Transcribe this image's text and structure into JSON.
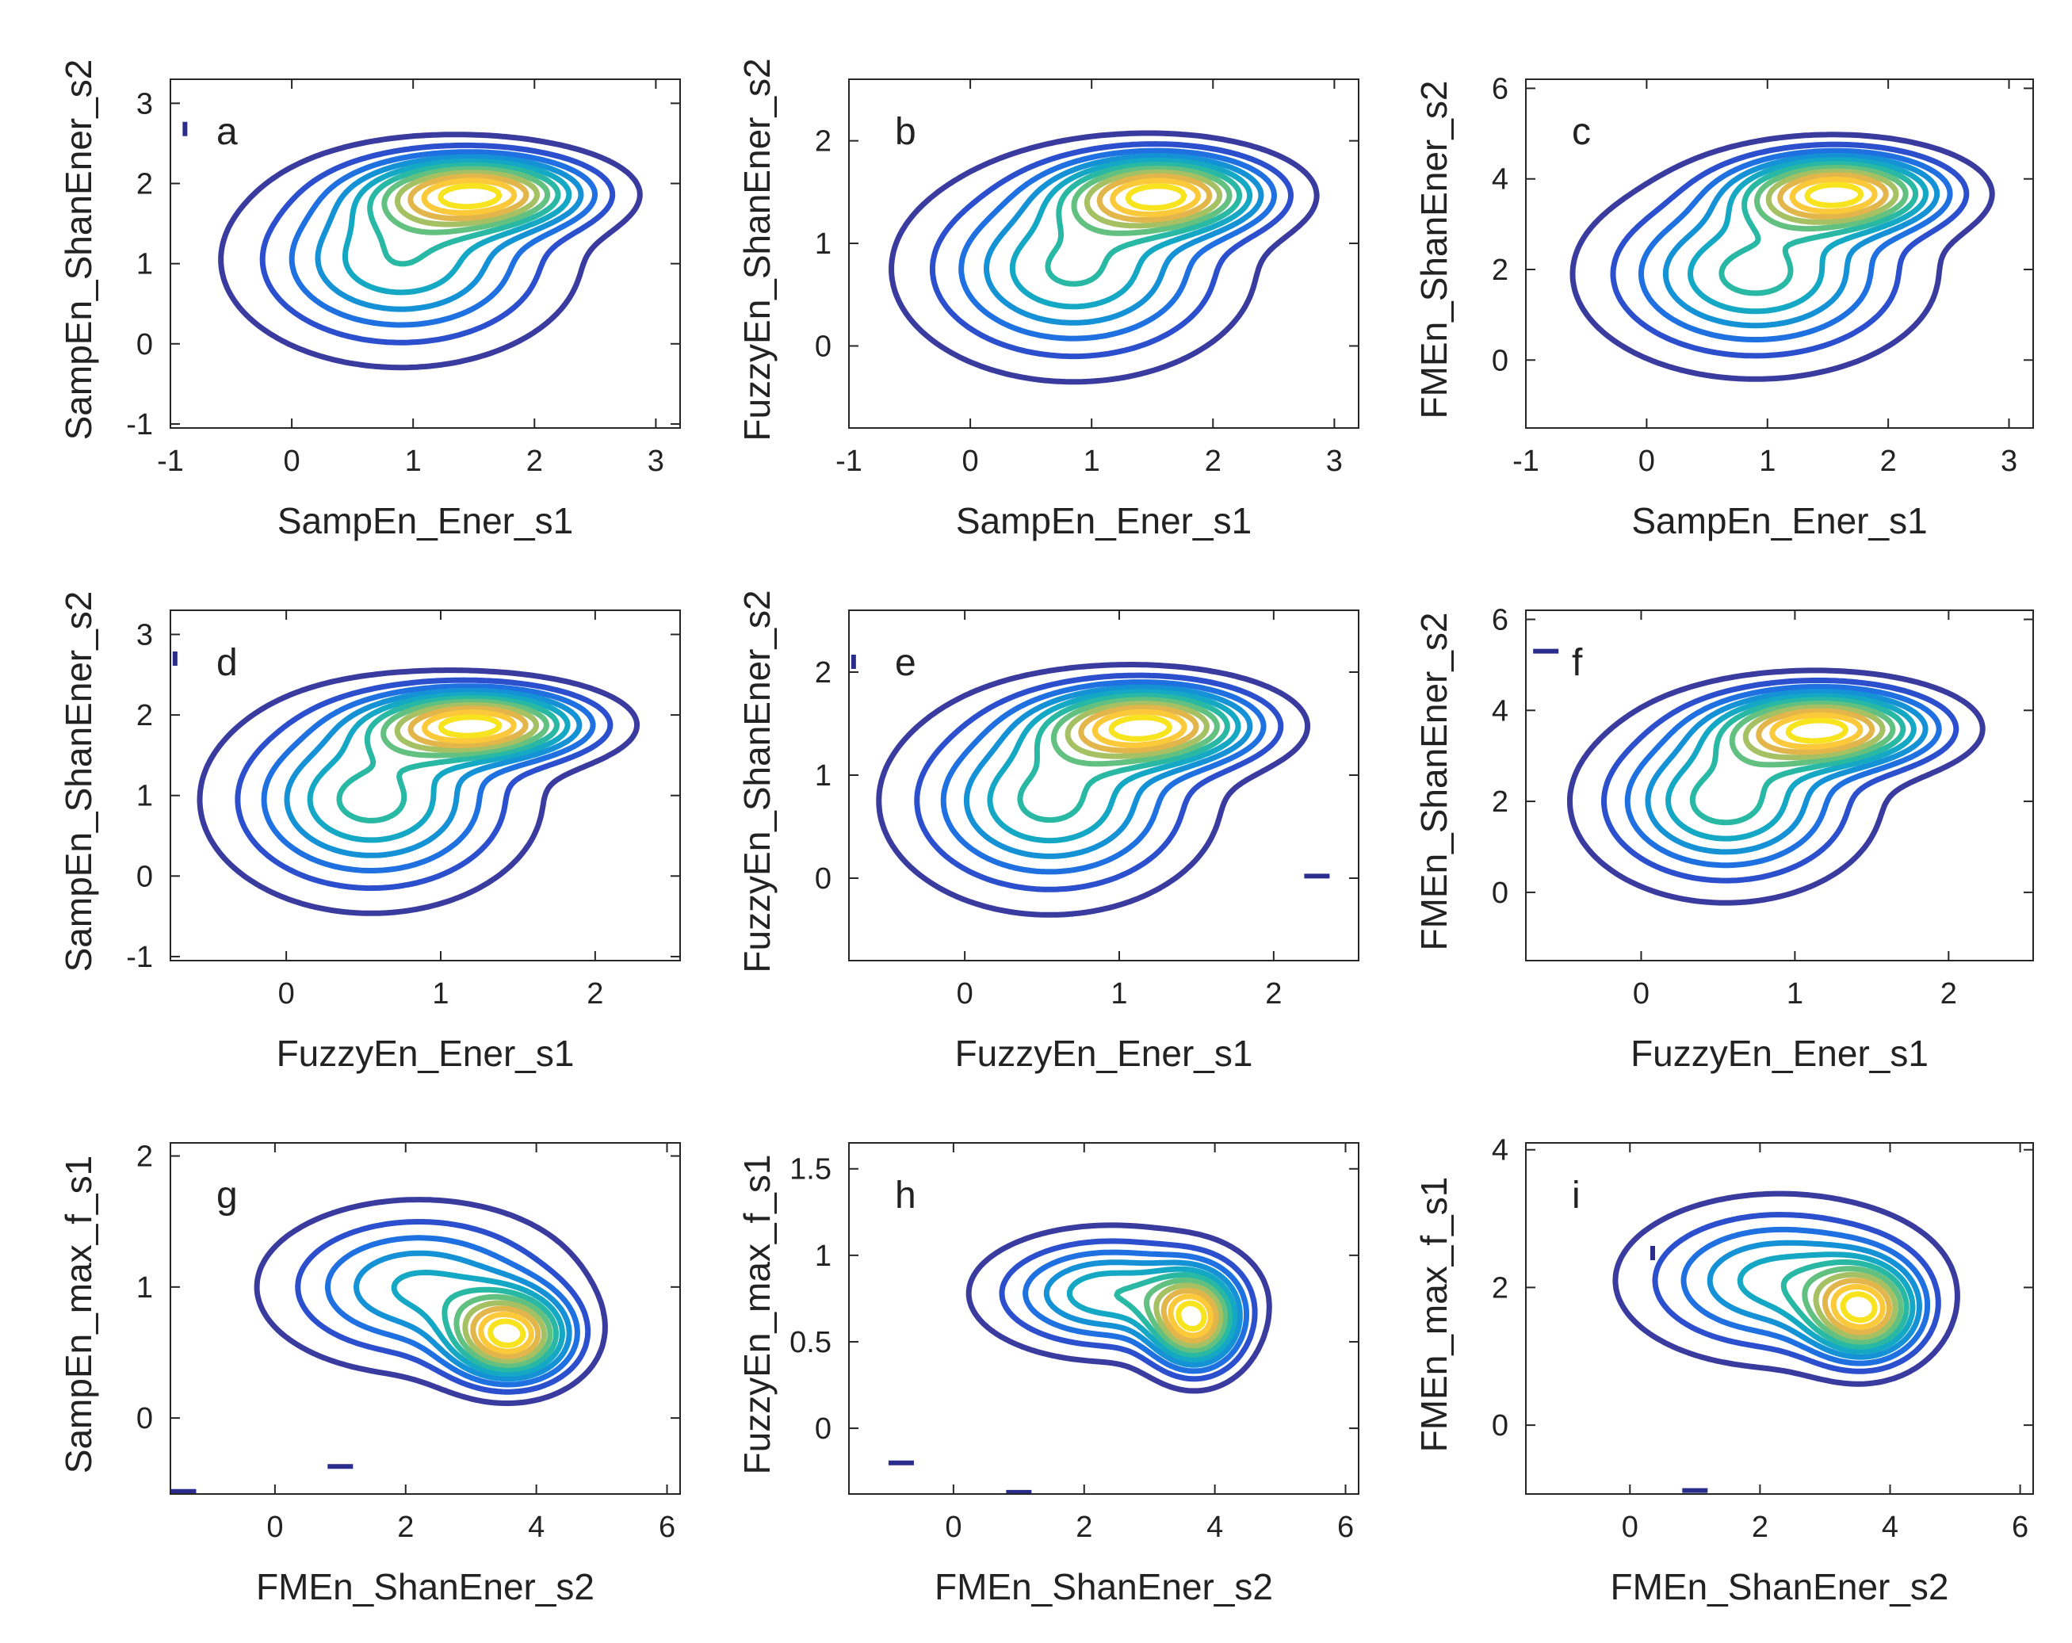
{
  "figure": {
    "background": "#ffffff"
  },
  "colors": {
    "axis": "#262626",
    "levels": [
      "#3a3b9f",
      "#2c4fcd",
      "#1f70e0",
      "#1592d6",
      "#15a8c4",
      "#28b8a4",
      "#62c080",
      "#a6c064",
      "#e2b64a",
      "#fbc93a",
      "#f8e31f"
    ]
  },
  "chart_data": [
    {
      "type": "contour",
      "panel": "a",
      "xlabel": "SampEn_Ener_s1",
      "ylabel": "SampEn_ShanEner_s2",
      "xlim": [
        -1,
        3.2
      ],
      "ylim": [
        -1.05,
        3.3
      ],
      "xticks": [
        -1,
        0,
        1,
        2,
        3
      ],
      "yticks": [
        -1,
        0,
        1,
        2,
        3
      ],
      "tick_labels_x": [
        "-1",
        "0",
        "1",
        "2",
        "3"
      ],
      "tick_labels_y": [
        "-1",
        "0",
        "1",
        "2",
        "3"
      ],
      "levels": 11,
      "components": [
        {
          "cx": 0.9,
          "cy": 1.05,
          "sx": 0.75,
          "sy": 0.68,
          "w": 0.6
        },
        {
          "cx": 1.55,
          "cy": 1.88,
          "sx": 0.58,
          "sy": 0.3,
          "w": 1.0
        }
      ],
      "markers": [
        {
          "x": -0.88,
          "y": 2.68,
          "orient": "v"
        }
      ]
    },
    {
      "type": "contour",
      "panel": "b",
      "xlabel": "SampEn_Ener_s1",
      "ylabel": "FuzzyEn_ShanEner_s2",
      "xlim": [
        -1,
        3.2
      ],
      "ylim": [
        -0.8,
        2.6
      ],
      "xticks": [
        -1,
        0,
        1,
        2,
        3
      ],
      "yticks": [
        0,
        1,
        2
      ],
      "tick_labels_x": [
        "-1",
        "0",
        "1",
        "2",
        "3"
      ],
      "tick_labels_y": [
        "0",
        "1",
        "2"
      ],
      "levels": 11,
      "components": [
        {
          "cx": 0.85,
          "cy": 0.75,
          "sx": 0.75,
          "sy": 0.55,
          "w": 0.6
        },
        {
          "cx": 1.6,
          "cy": 1.48,
          "sx": 0.55,
          "sy": 0.25,
          "w": 1.0
        }
      ],
      "markers": []
    },
    {
      "type": "contour",
      "panel": "c",
      "xlabel": "SampEn_Ener_s1",
      "ylabel": "FMEn_ShanEner_s2",
      "xlim": [
        -1,
        3.2
      ],
      "ylim": [
        -1.5,
        6.2
      ],
      "xticks": [
        -1,
        0,
        1,
        2,
        3
      ],
      "yticks": [
        0,
        2,
        4,
        6
      ],
      "tick_labels_x": [
        "-1",
        "0",
        "1",
        "2",
        "3"
      ],
      "tick_labels_y": [
        "0",
        "2",
        "4",
        "6"
      ],
      "levels": 11,
      "components": [
        {
          "cx": 0.9,
          "cy": 1.9,
          "sx": 0.75,
          "sy": 1.15,
          "w": 0.6
        },
        {
          "cx": 1.6,
          "cy": 3.7,
          "sx": 0.55,
          "sy": 0.55,
          "w": 1.0
        }
      ],
      "markers": []
    },
    {
      "type": "contour",
      "panel": "d",
      "xlabel": "FuzzyEn_Ener_s1",
      "ylabel": "SampEn_ShanEner_s2",
      "xlim": [
        -0.75,
        2.55
      ],
      "ylim": [
        -1.05,
        3.3
      ],
      "xticks": [
        0,
        1,
        2
      ],
      "yticks": [
        -1,
        0,
        1,
        2,
        3
      ],
      "tick_labels_x": [
        "0",
        "1",
        "2"
      ],
      "tick_labels_y": [
        "-1",
        "0",
        "1",
        "2",
        "3"
      ],
      "levels": 11,
      "components": [
        {
          "cx": 0.55,
          "cy": 0.95,
          "sx": 0.55,
          "sy": 0.7,
          "w": 0.6
        },
        {
          "cx": 1.25,
          "cy": 1.88,
          "sx": 0.45,
          "sy": 0.28,
          "w": 1.0
        }
      ],
      "markers": [
        {
          "x": -0.72,
          "y": 2.7,
          "orient": "v"
        }
      ]
    },
    {
      "type": "contour",
      "panel": "e",
      "xlabel": "FuzzyEn_Ener_s1",
      "ylabel": "FuzzyEn_ShanEner_s2",
      "xlim": [
        -0.75,
        2.55
      ],
      "ylim": [
        -0.8,
        2.6
      ],
      "xticks": [
        0,
        1,
        2
      ],
      "yticks": [
        0,
        1,
        2
      ],
      "tick_labels_x": [
        "0",
        "1",
        "2"
      ],
      "tick_labels_y": [
        "0",
        "1",
        "2"
      ],
      "levels": 11,
      "components": [
        {
          "cx": 0.55,
          "cy": 0.75,
          "sx": 0.55,
          "sy": 0.55,
          "w": 0.6
        },
        {
          "cx": 1.2,
          "cy": 1.48,
          "sx": 0.45,
          "sy": 0.25,
          "w": 1.0
        }
      ],
      "markers": [
        {
          "x": 2.28,
          "y": 0.02,
          "orient": "h"
        },
        {
          "x": -0.72,
          "y": 2.1,
          "orient": "v"
        }
      ]
    },
    {
      "type": "contour",
      "panel": "f",
      "xlabel": "FuzzyEn_Ener_s1",
      "ylabel": "FMEn_ShanEner_s2",
      "xlim": [
        -0.75,
        2.55
      ],
      "ylim": [
        -1.5,
        6.2
      ],
      "xticks": [
        0,
        1,
        2
      ],
      "yticks": [
        0,
        2,
        4,
        6
      ],
      "tick_labels_x": [
        "0",
        "1",
        "2"
      ],
      "tick_labels_y": [
        "0",
        "2",
        "4",
        "6"
      ],
      "levels": 11,
      "components": [
        {
          "cx": 0.55,
          "cy": 2.0,
          "sx": 0.5,
          "sy": 1.1,
          "w": 0.6
        },
        {
          "cx": 1.2,
          "cy": 3.6,
          "sx": 0.45,
          "sy": 0.55,
          "w": 1.0
        }
      ],
      "markers": [
        {
          "x": -0.62,
          "y": 5.3,
          "orient": "h"
        }
      ]
    },
    {
      "type": "contour",
      "panel": "g",
      "xlabel": "FMEn_ShanEner_s2",
      "ylabel": "SampEn_max_f_s1",
      "xlim": [
        -1.6,
        6.2
      ],
      "ylim": [
        -0.58,
        2.1
      ],
      "xticks": [
        0,
        2,
        4,
        6
      ],
      "yticks": [
        0,
        1,
        2
      ],
      "tick_labels_x": [
        "0",
        "2",
        "4",
        "6"
      ],
      "tick_labels_y": [
        "0",
        "1",
        "2"
      ],
      "levels": 11,
      "components": [
        {
          "cx": 2.2,
          "cy": 1.0,
          "sx": 1.3,
          "sy": 0.35,
          "w": 0.5
        },
        {
          "cx": 3.6,
          "cy": 0.62,
          "sx": 0.6,
          "sy": 0.22,
          "w": 1.0
        }
      ],
      "markers": [
        {
          "x": 1.0,
          "y": -0.37,
          "orient": "h"
        },
        {
          "x": -1.4,
          "y": -0.56,
          "orient": "h"
        }
      ]
    },
    {
      "type": "contour",
      "panel": "h",
      "xlabel": "FMEn_ShanEner_s2",
      "ylabel": "FuzzyEn_max_f_s1",
      "xlim": [
        -1.6,
        6.2
      ],
      "ylim": [
        -0.38,
        1.65
      ],
      "xticks": [
        0,
        2,
        4,
        6
      ],
      "yticks": [
        0,
        0.5,
        1,
        1.5
      ],
      "tick_labels_x": [
        "0",
        "2",
        "4",
        "6"
      ],
      "tick_labels_y": [
        "0",
        "0.5",
        "1",
        "1.5"
      ],
      "levels": 11,
      "components": [
        {
          "cx": 2.4,
          "cy": 0.78,
          "sx": 1.1,
          "sy": 0.2,
          "w": 0.6
        },
        {
          "cx": 3.7,
          "cy": 0.62,
          "sx": 0.45,
          "sy": 0.18,
          "w": 1.0
        }
      ],
      "markers": [
        {
          "x": -0.8,
          "y": -0.2,
          "orient": "h"
        },
        {
          "x": 1.0,
          "y": -0.37,
          "orient": "h"
        }
      ]
    },
    {
      "type": "contour",
      "panel": "i",
      "xlabel": "FMEn_ShanEner_s2",
      "ylabel": "FMEn_max_f_s1",
      "xlim": [
        -1.6,
        6.2
      ],
      "ylim": [
        -1.0,
        4.1
      ],
      "xticks": [
        0,
        2,
        4,
        6
      ],
      "yticks": [
        0,
        2,
        4
      ],
      "tick_labels_x": [
        "0",
        "2",
        "4",
        "6"
      ],
      "tick_labels_y": [
        "0",
        "2",
        "4"
      ],
      "levels": 11,
      "components": [
        {
          "cx": 2.3,
          "cy": 2.1,
          "sx": 1.3,
          "sy": 0.65,
          "w": 0.6
        },
        {
          "cx": 3.6,
          "cy": 1.65,
          "sx": 0.55,
          "sy": 0.45,
          "w": 1.0
        }
      ],
      "markers": [
        {
          "x": 0.35,
          "y": 2.5,
          "orient": "v"
        },
        {
          "x": 1.0,
          "y": -0.95,
          "orient": "h"
        }
      ]
    }
  ]
}
